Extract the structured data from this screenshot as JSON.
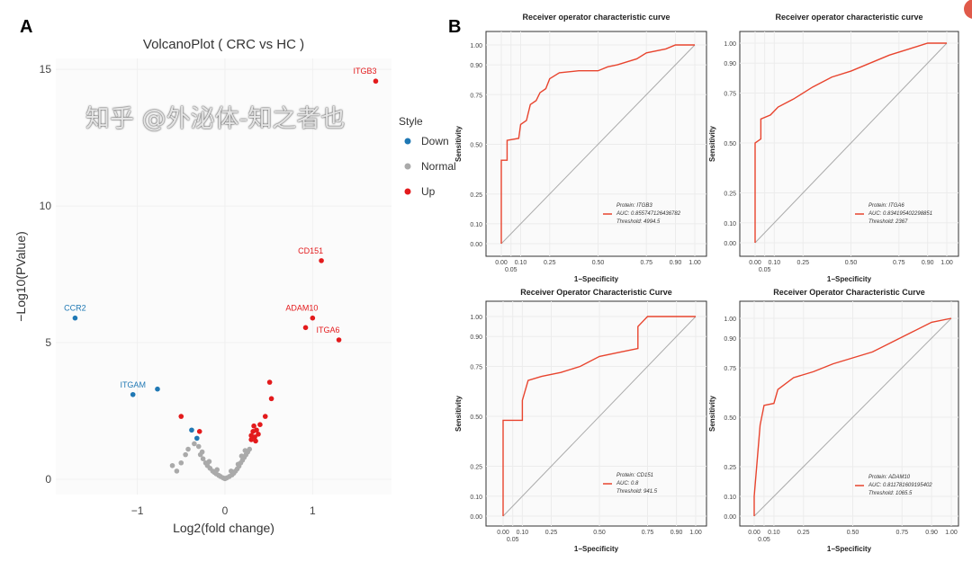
{
  "panel_labels": [
    "A",
    "B"
  ],
  "watermark": "知乎 @外泌体-知之者也",
  "chart_data": [
    {
      "type": "scatter",
      "title": "VolcanoPlot ( CRC  vs  HC )",
      "xlabel": "Log2(fold change)",
      "ylabel": "−Log10(PValue)",
      "xlim": [
        -1.93,
        1.9
      ],
      "ylim": [
        -0.56,
        15.4
      ],
      "xticks": [
        -1,
        0,
        1
      ],
      "yticks": [
        0,
        5,
        10,
        15
      ],
      "grid": true,
      "legend": {
        "title": "Style",
        "placement": "right",
        "entries": [
          "Down",
          "Normal",
          "Up"
        ]
      },
      "colors": {
        "Down": "#1f78b4",
        "Normal": "#aaaaaa",
        "Up": "#e31a1c"
      },
      "series": [
        {
          "name": "Down",
          "points": [
            {
              "x": -1.71,
              "y": 5.9,
              "label": "CCR2"
            },
            {
              "x": -1.05,
              "y": 3.1,
              "label": "ITGAM"
            },
            {
              "x": -0.77,
              "y": 3.3
            },
            {
              "x": -0.38,
              "y": 1.8
            },
            {
              "x": -0.32,
              "y": 1.5
            }
          ]
        },
        {
          "name": "Normal",
          "points": [
            {
              "x": -0.6,
              "y": 0.5
            },
            {
              "x": -0.45,
              "y": 0.9
            },
            {
              "x": -0.42,
              "y": 1.1
            },
            {
              "x": -0.35,
              "y": 1.3
            },
            {
              "x": -0.3,
              "y": 1.2
            },
            {
              "x": -0.28,
              "y": 0.9
            },
            {
              "x": -0.25,
              "y": 0.75
            },
            {
              "x": -0.22,
              "y": 0.6
            },
            {
              "x": -0.2,
              "y": 0.5
            },
            {
              "x": -0.17,
              "y": 0.4
            },
            {
              "x": -0.14,
              "y": 0.3
            },
            {
              "x": -0.12,
              "y": 0.25
            },
            {
              "x": -0.1,
              "y": 0.2
            },
            {
              "x": -0.07,
              "y": 0.14
            },
            {
              "x": -0.05,
              "y": 0.1
            },
            {
              "x": -0.02,
              "y": 0.05
            },
            {
              "x": 0.0,
              "y": 0.02
            },
            {
              "x": 0.02,
              "y": 0.05
            },
            {
              "x": 0.05,
              "y": 0.1
            },
            {
              "x": 0.08,
              "y": 0.16
            },
            {
              "x": 0.1,
              "y": 0.22
            },
            {
              "x": 0.12,
              "y": 0.3
            },
            {
              "x": 0.14,
              "y": 0.38
            },
            {
              "x": 0.16,
              "y": 0.48
            },
            {
              "x": 0.18,
              "y": 0.6
            },
            {
              "x": 0.2,
              "y": 0.7
            },
            {
              "x": 0.22,
              "y": 0.8
            },
            {
              "x": 0.24,
              "y": 0.9
            },
            {
              "x": 0.26,
              "y": 1.0
            },
            {
              "x": 0.28,
              "y": 1.1
            },
            {
              "x": 0.15,
              "y": 0.55
            },
            {
              "x": 0.19,
              "y": 0.85
            },
            {
              "x": 0.23,
              "y": 1.05
            },
            {
              "x": -0.18,
              "y": 0.65
            },
            {
              "x": -0.26,
              "y": 1.0
            },
            {
              "x": -0.09,
              "y": 0.35
            },
            {
              "x": 0.07,
              "y": 0.3
            },
            {
              "x": -0.55,
              "y": 0.3
            },
            {
              "x": -0.5,
              "y": 0.6
            }
          ]
        },
        {
          "name": "Up",
          "points": [
            {
              "x": 1.72,
              "y": 14.57,
              "label": "ITGB3"
            },
            {
              "x": 1.1,
              "y": 8.0,
              "label": "CD151"
            },
            {
              "x": 1.0,
              "y": 5.9,
              "label": "ADAM10"
            },
            {
              "x": 0.92,
              "y": 5.55
            },
            {
              "x": 1.3,
              "y": 5.1,
              "label": "ITGA6"
            },
            {
              "x": 0.51,
              "y": 3.55
            },
            {
              "x": 0.53,
              "y": 2.95
            },
            {
              "x": 0.46,
              "y": 2.3
            },
            {
              "x": -0.5,
              "y": 2.3
            },
            {
              "x": -0.29,
              "y": 1.75
            },
            {
              "x": 0.3,
              "y": 1.6
            },
            {
              "x": 0.32,
              "y": 1.75
            },
            {
              "x": 0.34,
              "y": 1.55
            },
            {
              "x": 0.36,
              "y": 1.8
            },
            {
              "x": 0.38,
              "y": 1.65
            },
            {
              "x": 0.4,
              "y": 2.0
            },
            {
              "x": 0.33,
              "y": 1.95
            },
            {
              "x": 0.3,
              "y": 1.45
            },
            {
              "x": 0.35,
              "y": 1.4
            }
          ]
        }
      ]
    },
    {
      "type": "line",
      "title": "Receiver operator characteristic curve",
      "xlabel": "1−Specificity",
      "ylabel": "Sensitivity",
      "xlim": [
        0,
        1
      ],
      "ylim": [
        0,
        1
      ],
      "xticks": [
        "0.00",
        "0.05",
        "0.10",
        "0.25",
        "0.50",
        "0.75",
        "0.90",
        "1.00"
      ],
      "yticks": [
        "0.00",
        "0.10",
        "0.25",
        "0.50",
        "0.75",
        "0.90",
        "1.00"
      ],
      "legend": [
        "Protein: ITGB3",
        "AUC: 0.855747126436782",
        "Threshold: 4994.5"
      ],
      "fpr": [
        0,
        0,
        0.03,
        0.03,
        0.09,
        0.1,
        0.13,
        0.15,
        0.18,
        0.2,
        0.23,
        0.25,
        0.3,
        0.4,
        0.5,
        0.55,
        0.6,
        0.7,
        0.75,
        0.85,
        0.9,
        1
      ],
      "tpr": [
        0,
        0.42,
        0.42,
        0.52,
        0.53,
        0.6,
        0.62,
        0.7,
        0.72,
        0.76,
        0.78,
        0.83,
        0.86,
        0.87,
        0.87,
        0.89,
        0.9,
        0.93,
        0.96,
        0.98,
        1,
        1
      ]
    },
    {
      "type": "line",
      "title": "Receiver operator characteristic curve",
      "xlabel": "1−Specificity",
      "ylabel": "Sensitivity",
      "xlim": [
        0,
        1
      ],
      "ylim": [
        0,
        1
      ],
      "xticks": [
        "0.00",
        "0.05",
        "0.10",
        "0.25",
        "0.50",
        "0.75",
        "0.90",
        "1.00"
      ],
      "yticks": [
        "0.00",
        "0.10",
        "0.25",
        "0.50",
        "0.75",
        "0.90",
        "1.00"
      ],
      "legend": [
        "Protein: ITGA6",
        "AUC: 0.834195402298851",
        "Threshold: 2367"
      ],
      "fpr": [
        0,
        0,
        0.03,
        0.03,
        0.08,
        0.12,
        0.2,
        0.3,
        0.4,
        0.5,
        0.6,
        0.7,
        0.8,
        0.9,
        1
      ],
      "tpr": [
        0,
        0.5,
        0.52,
        0.62,
        0.64,
        0.68,
        0.72,
        0.78,
        0.83,
        0.86,
        0.9,
        0.94,
        0.97,
        1,
        1
      ]
    },
    {
      "type": "line",
      "title": "Receiver Operator Characteristic Curve",
      "xlabel": "1−Specificity",
      "ylabel": "Sensitivity",
      "xlim": [
        0,
        1
      ],
      "ylim": [
        0,
        1
      ],
      "xticks": [
        "0.00",
        "0.05",
        "0.10",
        "0.25",
        "0.50",
        "0.75",
        "0.90",
        "1.00"
      ],
      "yticks": [
        "0.00",
        "0.10",
        "0.25",
        "0.50",
        "0.75",
        "0.90",
        "1.00"
      ],
      "legend": [
        "Protein: CD151",
        "AUC: 0.8",
        "Threshold: 941.5"
      ],
      "fpr": [
        0,
        0,
        0.1,
        0.1,
        0.13,
        0.2,
        0.3,
        0.4,
        0.5,
        0.6,
        0.7,
        0.7,
        0.73,
        0.75,
        1
      ],
      "tpr": [
        0,
        0.48,
        0.48,
        0.58,
        0.68,
        0.7,
        0.72,
        0.75,
        0.8,
        0.82,
        0.84,
        0.95,
        0.98,
        1,
        1
      ]
    },
    {
      "type": "line",
      "title": "Receiver Operator Characteristic Curve",
      "xlabel": "1−Specificity",
      "ylabel": "Sensitivity",
      "xlim": [
        0,
        1
      ],
      "ylim": [
        0,
        1
      ],
      "xticks": [
        "0.00",
        "0.05",
        "0.10",
        "0.25",
        "0.50",
        "0.75",
        "0.90",
        "1.00"
      ],
      "yticks": [
        "0.00",
        "0.10",
        "0.25",
        "0.50",
        "0.75",
        "0.90",
        "1.00"
      ],
      "legend": [
        "Protein: ADAM10",
        "AUC: 0.811781609195402",
        "Threshold: 1065.5"
      ],
      "fpr": [
        0,
        0,
        0.03,
        0.05,
        0.1,
        0.12,
        0.2,
        0.3,
        0.4,
        0.5,
        0.6,
        0.7,
        0.8,
        0.9,
        1
      ],
      "tpr": [
        0,
        0.1,
        0.46,
        0.56,
        0.57,
        0.64,
        0.7,
        0.73,
        0.77,
        0.8,
        0.83,
        0.88,
        0.93,
        0.98,
        1
      ]
    }
  ]
}
